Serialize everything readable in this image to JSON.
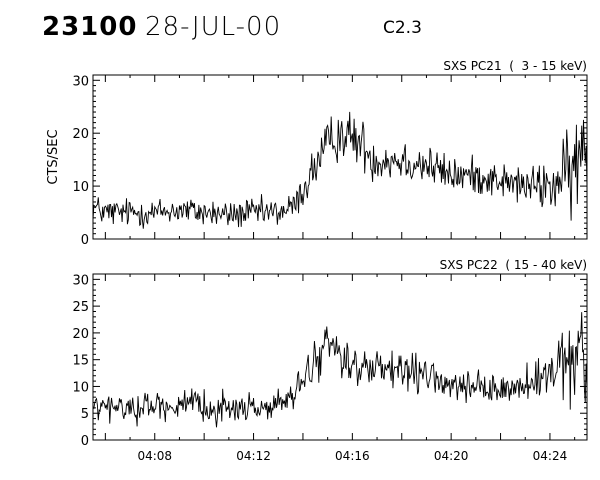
{
  "header": {
    "event_id": "23100",
    "date": "28-JUL-00",
    "flare_class": "C2.3"
  },
  "chart_data": [
    {
      "type": "line",
      "title": "SXS PC21  (  3 - 15 keV)",
      "ylabel": "CTS/SEC",
      "xlabel": "",
      "x_unit": "minutes after 04:00 UT",
      "xlim": [
        5.5,
        25.5
      ],
      "ylim": [
        0,
        31
      ],
      "y_ticks": [
        0,
        10,
        20,
        30
      ],
      "grid": false,
      "series": [
        {
          "x": [
            5.5,
            6.0,
            7.0,
            8.0,
            9.0,
            10.0,
            11.0,
            12.0,
            13.0,
            13.6,
            14.0,
            14.4,
            14.8,
            15.2,
            15.6,
            16.0,
            16.4,
            16.8,
            17.2,
            18.0,
            19.0,
            20.0,
            21.0,
            22.0,
            23.0,
            23.6,
            24.0,
            24.4,
            24.8,
            25.2,
            25.5
          ],
          "values": [
            6.0,
            5.0,
            5.0,
            5.0,
            5.5,
            5.0,
            4.5,
            5.0,
            5.0,
            6.0,
            9.0,
            13.0,
            16.0,
            19.0,
            20.0,
            19.0,
            18.0,
            15.0,
            15.0,
            15.0,
            14.0,
            12.0,
            12.0,
            11.0,
            10.0,
            10.0,
            10.0,
            11.0,
            12.0,
            15.0,
            17.0
          ],
          "noise": [
            2.0,
            2.0,
            2.0,
            2.0,
            2.0,
            2.0,
            2.0,
            2.0,
            2.0,
            2.0,
            2.5,
            3.0,
            3.5,
            3.5,
            3.5,
            3.5,
            3.5,
            3.0,
            3.0,
            3.0,
            3.0,
            2.5,
            2.5,
            2.5,
            2.5,
            3.0,
            4.0,
            5.0,
            6.0,
            7.0,
            8.0
          ]
        }
      ]
    },
    {
      "type": "line",
      "title": "SXS PC22  ( 15 - 40 keV)",
      "ylabel": "",
      "xlabel": "",
      "x_unit": "minutes after 04:00 UT",
      "xlim": [
        5.5,
        25.5
      ],
      "ylim": [
        0,
        31
      ],
      "y_ticks": [
        0,
        5,
        10,
        15,
        20,
        25,
        30
      ],
      "x_ticks": [
        {
          "value": 8,
          "label": "04:08"
        },
        {
          "value": 12,
          "label": "04:12"
        },
        {
          "value": 16,
          "label": "04:16"
        },
        {
          "value": 20,
          "label": "04:20"
        },
        {
          "value": 24,
          "label": "04:24"
        }
      ],
      "grid": false,
      "series": [
        {
          "x": [
            5.5,
            6.0,
            7.0,
            8.0,
            9.0,
            10.0,
            11.0,
            12.0,
            13.0,
            13.6,
            14.0,
            14.4,
            14.8,
            15.2,
            15.6,
            16.0,
            16.4,
            16.8,
            17.2,
            18.0,
            19.0,
            20.0,
            21.0,
            22.0,
            23.0,
            23.6,
            24.0,
            24.4,
            24.8,
            25.2,
            25.5
          ],
          "values": [
            6.0,
            6.0,
            6.0,
            6.5,
            6.5,
            6.0,
            6.0,
            6.0,
            6.5,
            8.0,
            11.0,
            14.0,
            17.0,
            18.0,
            16.0,
            14.0,
            13.0,
            13.0,
            13.0,
            12.5,
            12.0,
            10.0,
            9.5,
            9.5,
            10.0,
            11.0,
            12.0,
            13.0,
            14.0,
            15.0,
            15.0
          ],
          "noise": [
            2.0,
            2.0,
            2.0,
            2.0,
            2.0,
            2.0,
            2.0,
            2.0,
            2.0,
            2.0,
            2.5,
            3.0,
            3.0,
            3.0,
            3.0,
            2.5,
            2.5,
            2.5,
            2.5,
            2.5,
            2.5,
            2.0,
            2.0,
            2.0,
            2.5,
            3.0,
            3.5,
            4.5,
            5.5,
            6.5,
            7.0
          ]
        }
      ]
    }
  ]
}
